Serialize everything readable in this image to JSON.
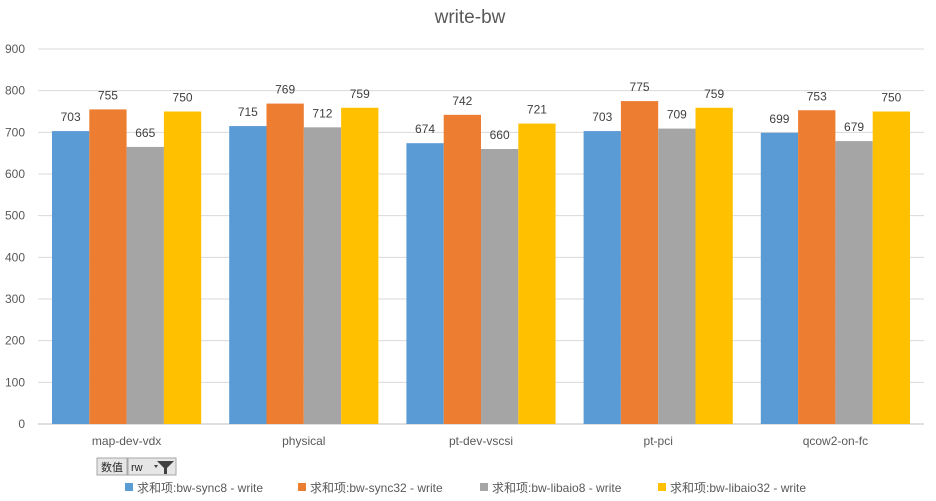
{
  "chart_data": {
    "type": "bar",
    "title": "write-bw",
    "categories": [
      "map-dev-vdx",
      "physical",
      "pt-dev-vscsi",
      "pt-pci",
      "qcow2-on-fc"
    ],
    "series": [
      {
        "name": "求和项:bw-sync8 - write",
        "color": "#5B9BD5",
        "values": [
          703,
          715,
          674,
          703,
          699
        ]
      },
      {
        "name": "求和项:bw-sync32 - write",
        "color": "#ED7D31",
        "values": [
          755,
          769,
          742,
          775,
          753
        ]
      },
      {
        "name": "求和项:bw-libaio8 - write",
        "color": "#A5A5A5",
        "values": [
          665,
          712,
          660,
          709,
          679
        ]
      },
      {
        "name": "求和项:bw-libaio32 - write",
        "color": "#FFC000",
        "values": [
          750,
          759,
          721,
          759,
          750
        ]
      }
    ],
    "ylim": [
      0,
      900
    ],
    "yticks": [
      0,
      100,
      200,
      300,
      400,
      500,
      600,
      700,
      800,
      900
    ],
    "grid": true,
    "legend": "bottom"
  },
  "field_buttons": {
    "values_label": "数值",
    "row_field_label": "rw"
  }
}
